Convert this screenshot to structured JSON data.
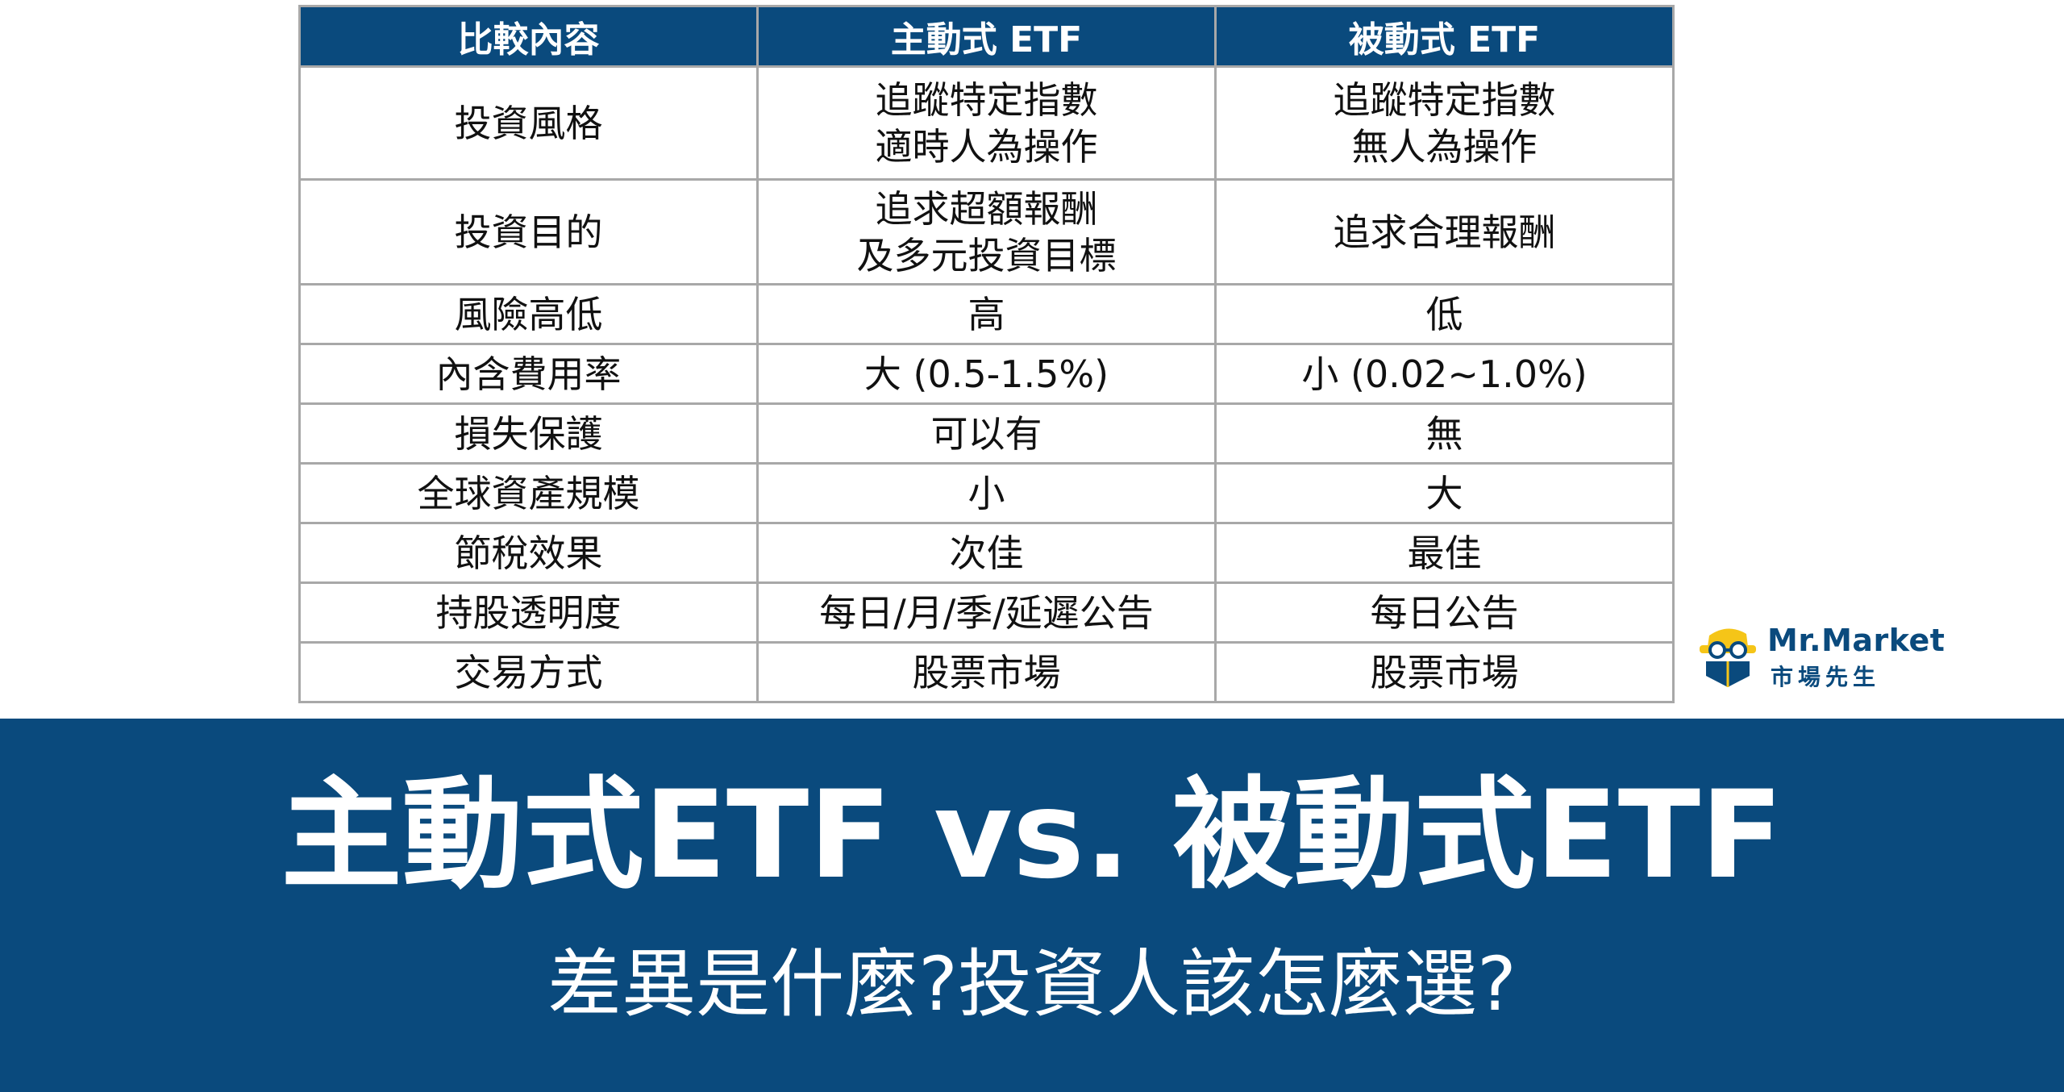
{
  "table": {
    "headers": [
      "比較內容",
      "主動式 ETF",
      "被動式 ETF"
    ],
    "rows": [
      {
        "label": "投資風格",
        "active": [
          "追蹤特定指數",
          "適時人為操作"
        ],
        "passive": [
          "追蹤特定指數",
          "無人為操作"
        ]
      },
      {
        "label": "投資目的",
        "active": [
          "追求超額報酬",
          "及多元投資目標"
        ],
        "passive": [
          "追求合理報酬"
        ]
      },
      {
        "label": "風險高低",
        "active": [
          "高"
        ],
        "passive": [
          "低"
        ]
      },
      {
        "label": "內含費用率",
        "active": [
          "大 (0.5-1.5%)"
        ],
        "passive": [
          "小 (0.02~1.0%)"
        ]
      },
      {
        "label": "損失保護",
        "active": [
          "可以有"
        ],
        "passive": [
          "無"
        ]
      },
      {
        "label": "全球資產規模",
        "active": [
          "小"
        ],
        "passive": [
          "大"
        ]
      },
      {
        "label": "節稅效果",
        "active": [
          "次佳"
        ],
        "passive": [
          "最佳"
        ]
      },
      {
        "label": "持股透明度",
        "active": [
          "每日/月/季/延遲公告"
        ],
        "passive": [
          "每日公告"
        ]
      },
      {
        "label": "交易方式",
        "active": [
          "股票市場"
        ],
        "passive": [
          "股票市場"
        ]
      }
    ]
  },
  "logo": {
    "name": "Mr.Market",
    "name_cn": "市場先生",
    "icon": "mr-market-mascot-icon"
  },
  "banner": {
    "title": "主動式ETF vs. 被動式ETF",
    "subtitle": "差異是什麼?投資人該怎麼選?"
  },
  "colors": {
    "primary": "#0a4a7d",
    "accent": "#f5c518",
    "border": "#a8a8a8"
  }
}
